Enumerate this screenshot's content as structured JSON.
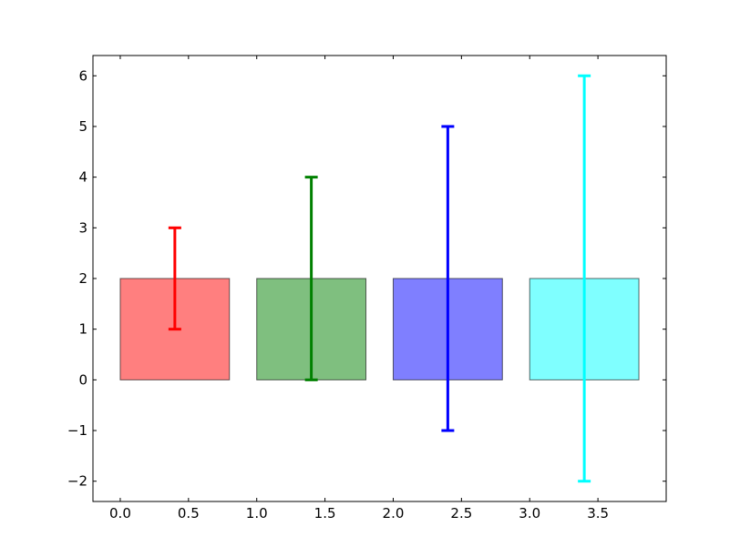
{
  "chart_data": {
    "type": "bar",
    "title": "",
    "xlabel": "",
    "ylabel": "",
    "xlim": [
      -0.2,
      4.0
    ],
    "ylim": [
      -2.4,
      6.4
    ],
    "grid": false,
    "bar_width": 0.8,
    "bars": [
      {
        "x": 0,
        "height": 2,
        "err_center": 2,
        "err": 1,
        "color": "#ff0000"
      },
      {
        "x": 1,
        "height": 2,
        "err_center": 2,
        "err": 2,
        "color": "#008000"
      },
      {
        "x": 2,
        "height": 2,
        "err_center": 2,
        "err": 3,
        "color": "#0000ff"
      },
      {
        "x": 3,
        "height": 2,
        "err_center": 2,
        "err": 4,
        "color": "#00ffff"
      }
    ],
    "bar_alpha": 0.5,
    "xticks": [
      0.0,
      0.5,
      1.0,
      1.5,
      2.0,
      2.5,
      3.0,
      3.5
    ],
    "xtick_labels": [
      "0.0",
      "0.5",
      "1.0",
      "1.5",
      "2.0",
      "2.5",
      "3.0",
      "3.5"
    ],
    "yticks": [
      -2,
      -1,
      0,
      1,
      2,
      3,
      4,
      5,
      6
    ],
    "ytick_labels": [
      "−2",
      "−1",
      "0",
      "1",
      "2",
      "3",
      "4",
      "5",
      "6"
    ]
  }
}
